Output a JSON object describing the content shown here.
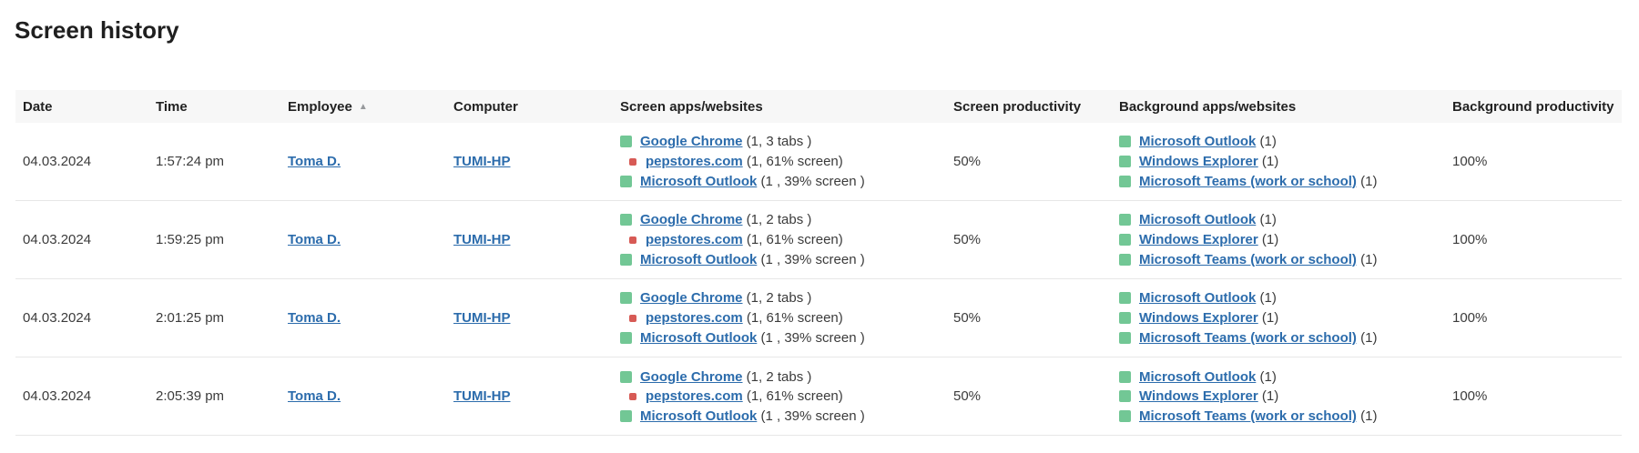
{
  "page": {
    "title": "Screen history"
  },
  "colors": {
    "link_blue": "#2c6cac",
    "marker_green": "#72c795",
    "marker_red": "#d75a55",
    "header_bg": "#f7f7f7",
    "row_border": "#e7e7e7",
    "sort_arrow_gray": "#97999c"
  },
  "table": {
    "sort_glyph": "▲",
    "columns": [
      {
        "label": "Date"
      },
      {
        "label": "Time"
      },
      {
        "label": "Employee",
        "sort": "asc"
      },
      {
        "label": "Computer"
      },
      {
        "label": "Screen apps/websites"
      },
      {
        "label": "Screen productivity"
      },
      {
        "label": "Background apps/websites"
      },
      {
        "label": "Background productivity"
      }
    ],
    "rows": [
      {
        "date": "04.03.2024",
        "time": "1:57:24 pm",
        "employee": "Toma D.",
        "computer": "TUMI-HP",
        "screen_apps": [
          {
            "marker": "green",
            "link": "Google Chrome",
            "suffix": " (1, 3 tabs )",
            "sub": false
          },
          {
            "marker": "red",
            "link": "pepstores.com",
            "suffix": " (1, 61% screen)",
            "sub": true
          },
          {
            "marker": "green",
            "link": "Microsoft Outlook",
            "suffix": " (1 , 39% screen )",
            "sub": false
          }
        ],
        "screen_productivity": "50%",
        "background_apps": [
          {
            "marker": "green",
            "link": "Microsoft Outlook",
            "suffix": " (1)",
            "sub": false
          },
          {
            "marker": "green",
            "link": "Windows Explorer",
            "suffix": " (1)",
            "sub": false
          },
          {
            "marker": "green",
            "link": "Microsoft Teams (work or school)",
            "suffix": " (1)",
            "sub": false
          }
        ],
        "background_productivity": "100%"
      },
      {
        "date": "04.03.2024",
        "time": "1:59:25 pm",
        "employee": "Toma D.",
        "computer": "TUMI-HP",
        "screen_apps": [
          {
            "marker": "green",
            "link": "Google Chrome",
            "suffix": " (1, 2 tabs )",
            "sub": false
          },
          {
            "marker": "red",
            "link": "pepstores.com",
            "suffix": " (1, 61% screen)",
            "sub": true
          },
          {
            "marker": "green",
            "link": "Microsoft Outlook",
            "suffix": " (1 , 39% screen )",
            "sub": false
          }
        ],
        "screen_productivity": "50%",
        "background_apps": [
          {
            "marker": "green",
            "link": "Microsoft Outlook",
            "suffix": " (1)",
            "sub": false
          },
          {
            "marker": "green",
            "link": "Windows Explorer",
            "suffix": " (1)",
            "sub": false
          },
          {
            "marker": "green",
            "link": "Microsoft Teams (work or school)",
            "suffix": " (1)",
            "sub": false
          }
        ],
        "background_productivity": "100%"
      },
      {
        "date": "04.03.2024",
        "time": "2:01:25 pm",
        "employee": "Toma D.",
        "computer": "TUMI-HP",
        "screen_apps": [
          {
            "marker": "green",
            "link": "Google Chrome",
            "suffix": " (1, 2 tabs )",
            "sub": false
          },
          {
            "marker": "red",
            "link": "pepstores.com",
            "suffix": " (1, 61% screen)",
            "sub": true
          },
          {
            "marker": "green",
            "link": "Microsoft Outlook",
            "suffix": " (1 , 39% screen )",
            "sub": false
          }
        ],
        "screen_productivity": "50%",
        "background_apps": [
          {
            "marker": "green",
            "link": "Microsoft Outlook",
            "suffix": " (1)",
            "sub": false
          },
          {
            "marker": "green",
            "link": "Windows Explorer",
            "suffix": " (1)",
            "sub": false
          },
          {
            "marker": "green",
            "link": "Microsoft Teams (work or school)",
            "suffix": " (1)",
            "sub": false
          }
        ],
        "background_productivity": "100%"
      },
      {
        "date": "04.03.2024",
        "time": "2:05:39 pm",
        "employee": "Toma D.",
        "computer": "TUMI-HP",
        "screen_apps": [
          {
            "marker": "green",
            "link": "Google Chrome",
            "suffix": " (1, 2 tabs )",
            "sub": false
          },
          {
            "marker": "red",
            "link": "pepstores.com",
            "suffix": " (1, 61% screen)",
            "sub": true
          },
          {
            "marker": "green",
            "link": "Microsoft Outlook",
            "suffix": " (1 , 39% screen )",
            "sub": false
          }
        ],
        "screen_productivity": "50%",
        "background_apps": [
          {
            "marker": "green",
            "link": "Microsoft Outlook",
            "suffix": " (1)",
            "sub": false
          },
          {
            "marker": "green",
            "link": "Windows Explorer",
            "suffix": " (1)",
            "sub": false
          },
          {
            "marker": "green",
            "link": "Microsoft Teams (work or school)",
            "suffix": " (1)",
            "sub": false
          }
        ],
        "background_productivity": "100%"
      }
    ]
  }
}
